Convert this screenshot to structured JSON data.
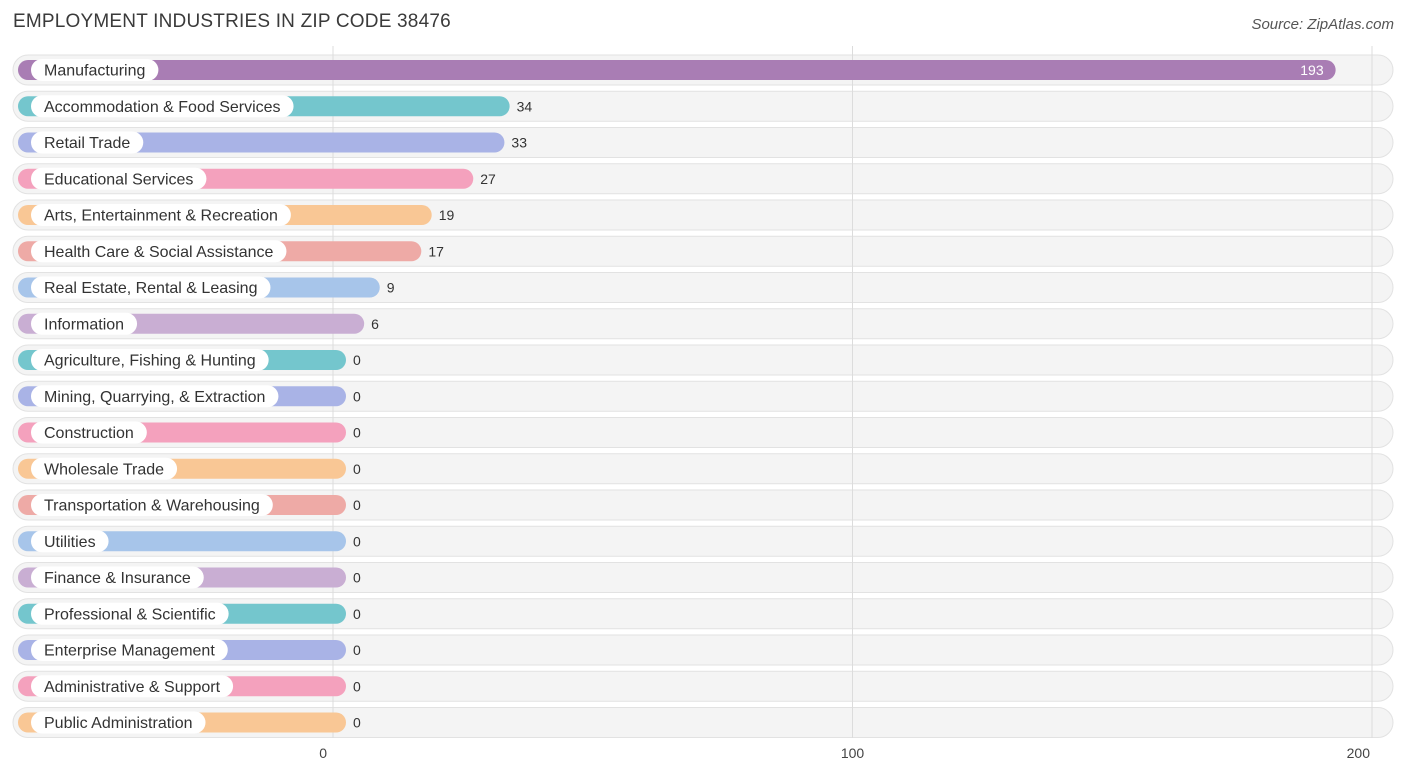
{
  "header": {
    "title": "EMPLOYMENT INDUSTRIES IN ZIP CODE 38476",
    "source": "Source: ZipAtlas.com"
  },
  "chart_data": {
    "type": "bar",
    "orientation": "horizontal",
    "title": "EMPLOYMENT INDUSTRIES IN ZIP CODE 38476",
    "xlim": [
      0,
      200
    ],
    "x_ticks": [
      0,
      100,
      200
    ],
    "grid": true,
    "categories": [
      "Manufacturing",
      "Accommodation & Food Services",
      "Retail Trade",
      "Educational Services",
      "Arts, Entertainment & Recreation",
      "Health Care & Social Assistance",
      "Real Estate, Rental & Leasing",
      "Information",
      "Agriculture, Fishing & Hunting",
      "Mining, Quarrying, & Extraction",
      "Construction",
      "Wholesale Trade",
      "Transportation & Warehousing",
      "Utilities",
      "Finance & Insurance",
      "Professional & Scientific",
      "Enterprise Management",
      "Administrative & Support",
      "Public Administration"
    ],
    "values": [
      193,
      34,
      33,
      27,
      19,
      17,
      9,
      6,
      0,
      0,
      0,
      0,
      0,
      0,
      0,
      0,
      0,
      0,
      0
    ],
    "value_labels": [
      "193",
      "34",
      "33",
      "27",
      "19",
      "17",
      "9",
      "6",
      "0",
      "0",
      "0",
      "0",
      "0",
      "0",
      "0",
      "0",
      "0",
      "0",
      "0"
    ],
    "colors": [
      "#a97db4",
      "#74c6cd",
      "#a9b3e6",
      "#f4a1bd",
      "#f9c795",
      "#eeaaa6",
      "#a7c5ea",
      "#c9aed3",
      "#74c6cd",
      "#a9b3e6",
      "#f4a1bd",
      "#f9c795",
      "#eeaaa6",
      "#a7c5ea",
      "#c9aed3",
      "#74c6cd",
      "#a9b3e6",
      "#f4a1bd",
      "#f9c795"
    ]
  }
}
